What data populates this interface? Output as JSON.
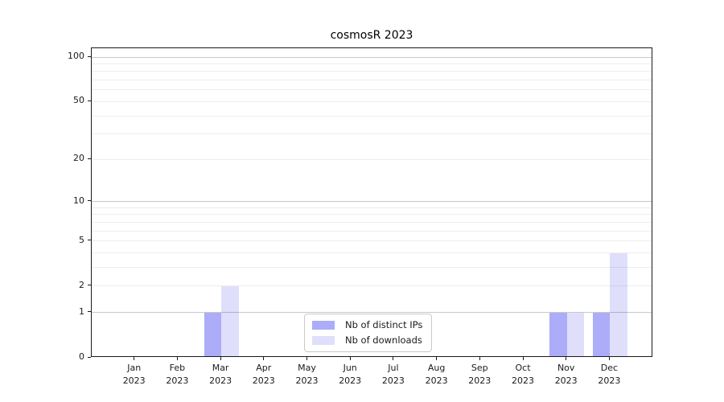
{
  "chart_data": {
    "type": "bar",
    "title": "cosmosR 2023",
    "categories": [
      "Jan",
      "Feb",
      "Mar",
      "Apr",
      "May",
      "Jun",
      "Jul",
      "Aug",
      "Sep",
      "Oct",
      "Nov",
      "Dec"
    ],
    "x_year": "2023",
    "series": [
      {
        "name": "Nb of distinct IPs",
        "color": "rgba(30,30,235,0.37)",
        "values": [
          0,
          0,
          1,
          0,
          0,
          0,
          0,
          0,
          0,
          0,
          1,
          1
        ]
      },
      {
        "name": "Nb of downloads",
        "color": "rgba(30,30,235,0.14)",
        "values": [
          0,
          0,
          2,
          0,
          0,
          0,
          0,
          0,
          0,
          0,
          1,
          4
        ]
      }
    ],
    "yscale": "log1p",
    "ylim": [
      0,
      114.7
    ],
    "yticks": [
      0,
      1,
      2,
      5,
      10,
      20,
      50,
      100
    ],
    "gridlines": {
      "major": [
        1,
        10,
        100
      ],
      "minor": [
        2,
        3,
        4,
        5,
        6,
        7,
        8,
        9,
        20,
        30,
        40,
        50,
        60,
        70,
        80,
        90
      ]
    },
    "colors": {
      "grid_major": "#c9c9c9",
      "grid_minor": "#ededed",
      "axis": "#1a1a1a",
      "tick_label": "#1a1a1a"
    },
    "legend": {
      "position": "inside-bottom-center"
    }
  }
}
